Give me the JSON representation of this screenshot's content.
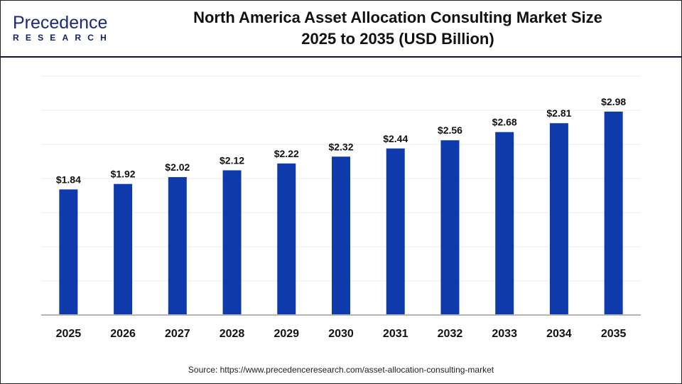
{
  "logo": {
    "line1": "Precedence",
    "line2": "RESEARCH"
  },
  "chart_data": {
    "type": "bar",
    "title": "North America Asset Allocation Consulting Market Size 2025 to 2035 (USD Billion)",
    "title_lines": [
      "North America Asset Allocation Consulting Market Size",
      "2025 to 2035 (USD Billion)"
    ],
    "categories": [
      "2025",
      "2026",
      "2027",
      "2028",
      "2029",
      "2030",
      "2031",
      "2032",
      "2033",
      "2034",
      "2035"
    ],
    "values": [
      1.84,
      1.92,
      2.02,
      2.12,
      2.22,
      2.32,
      2.44,
      2.56,
      2.68,
      2.81,
      2.98
    ],
    "data_labels": [
      "$1.84",
      "$1.92",
      "$2.02",
      "$2.12",
      "$2.22",
      "$2.32",
      "$2.44",
      "$2.56",
      "$2.68",
      "$2.81",
      "$2.98"
    ],
    "xlabel": "",
    "ylabel": "",
    "ylim": [
      0,
      3.5
    ],
    "grid": true,
    "bar_color": "#0f3aab"
  },
  "source": "Source: https://www.precedenceresearch.com/asset-allocation-consulting-market"
}
